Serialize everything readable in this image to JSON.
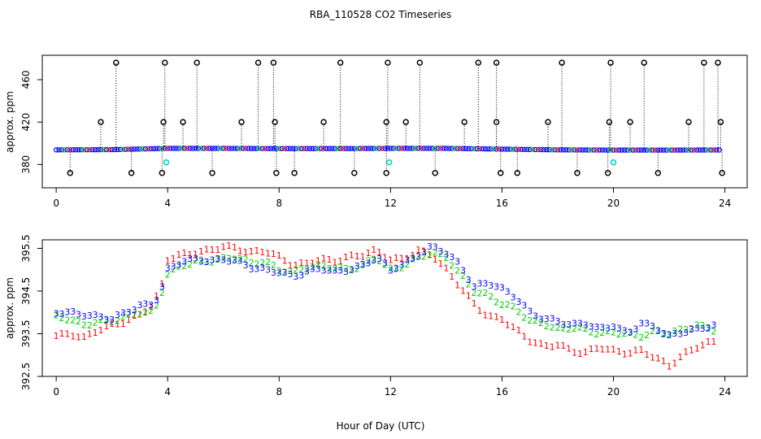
{
  "chart_data": {
    "type": "scatter",
    "title": "RBA_110528  CO2 Timeseries",
    "xlabel": "Hour of Day (UTC)",
    "colors": {
      "series1": "#ff0000",
      "series2": "#00cc00",
      "series3": "#0000ff",
      "outlier": "#000000",
      "cyan": "#00cccc"
    },
    "panels": [
      {
        "ylabel": "approx. ppm",
        "xlim": [
          -0.5,
          24.8
        ],
        "ylim": [
          358,
          483
        ],
        "xticks": [
          0,
          4,
          8,
          12,
          16,
          20,
          24
        ],
        "yticks": [
          380,
          420,
          460
        ],
        "baseline_points": [
          [
            0,
            393.8
          ],
          [
            2,
            394.0
          ],
          [
            4,
            395.2
          ],
          [
            6,
            395.2
          ],
          [
            8,
            395.0
          ],
          [
            10,
            395.0
          ],
          [
            12,
            395.2
          ],
          [
            14,
            395.2
          ],
          [
            16,
            394.5
          ],
          [
            18,
            393.8
          ],
          [
            20,
            393.6
          ],
          [
            22,
            393.6
          ],
          [
            24,
            393.7
          ]
        ],
        "high_outliers_476": [
          2.15,
          3.9,
          5.05,
          7.25,
          7.8,
          10.2,
          11.9,
          13.05,
          15.15,
          15.8,
          18.15,
          19.9,
          21.1,
          23.25,
          23.75
        ],
        "mid_outliers_420": [
          1.6,
          3.85,
          4.55,
          6.65,
          7.85,
          9.6,
          11.85,
          12.55,
          14.65,
          15.8,
          17.65,
          19.85,
          20.6,
          22.7,
          23.85
        ],
        "low_outliers_372": [
          0.5,
          2.7,
          3.8,
          5.6,
          7.9,
          8.55,
          10.7,
          11.85,
          13.6,
          15.95,
          16.55,
          18.7,
          19.8,
          21.6,
          23.9
        ],
        "cyan_points": [
          [
            3.95,
            382
          ],
          [
            11.95,
            382
          ],
          [
            20,
            382
          ]
        ]
      },
      {
        "ylabel": "approx. ppm",
        "xlim": [
          -0.5,
          24.8
        ],
        "ylim": [
          392.5,
          395.7
        ],
        "xticks": [
          0,
          4,
          8,
          12,
          16,
          20,
          24
        ],
        "yticks": [
          392.5,
          393.5,
          394.5,
          395.5
        ],
        "ytick_labels": [
          "392.5",
          "393.5",
          "394.5",
          "395.5"
        ],
        "series": [
          {
            "marker": "1",
            "values": [
              [
                0,
                393.45
              ],
              [
                0.5,
                393.5
              ],
              [
                1,
                393.4
              ],
              [
                1.5,
                393.6
              ],
              [
                2,
                393.7
              ],
              [
                2.5,
                393.8
              ],
              [
                3,
                393.95
              ],
              [
                3.5,
                394.2
              ],
              [
                3.8,
                394.65
              ],
              [
                4,
                395.25
              ],
              [
                4.5,
                395.35
              ],
              [
                5,
                395.4
              ],
              [
                5.5,
                395.45
              ],
              [
                6,
                395.55
              ],
              [
                6.5,
                395.5
              ],
              [
                7,
                395.4
              ],
              [
                7.5,
                395.45
              ],
              [
                8,
                395.3
              ],
              [
                8.5,
                395.1
              ],
              [
                9,
                395.15
              ],
              [
                9.5,
                395.25
              ],
              [
                10,
                395.2
              ],
              [
                10.5,
                395.3
              ],
              [
                11,
                395.35
              ],
              [
                11.5,
                395.45
              ],
              [
                12,
                395.25
              ],
              [
                12.5,
                395.25
              ],
              [
                13,
                395.45
              ],
              [
                13.5,
                395.35
              ],
              [
                14,
                395.0
              ],
              [
                14.5,
                394.6
              ],
              [
                15,
                394.2
              ],
              [
                15.5,
                393.9
              ],
              [
                16,
                393.85
              ],
              [
                16.5,
                393.6
              ],
              [
                17,
                393.35
              ],
              [
                17.5,
                393.2
              ],
              [
                18,
                393.25
              ],
              [
                18.5,
                393.1
              ],
              [
                19,
                393.05
              ],
              [
                19.5,
                393.2
              ],
              [
                20,
                393.1
              ],
              [
                20.5,
                393.05
              ],
              [
                21,
                393.1
              ],
              [
                21.5,
                392.95
              ],
              [
                22,
                392.75
              ],
              [
                22.5,
                393.0
              ],
              [
                23,
                393.2
              ],
              [
                23.5,
                393.3
              ]
            ]
          },
          {
            "marker": "2",
            "values": [
              [
                0,
                393.9
              ],
              [
                0.5,
                393.85
              ],
              [
                1,
                393.7
              ],
              [
                1.5,
                393.8
              ],
              [
                2,
                393.8
              ],
              [
                2.5,
                393.9
              ],
              [
                3,
                394.0
              ],
              [
                3.5,
                394.0
              ],
              [
                3.8,
                394.5
              ],
              [
                4,
                394.9
              ],
              [
                4.5,
                395.1
              ],
              [
                5,
                395.2
              ],
              [
                5.5,
                395.2
              ],
              [
                6,
                395.25
              ],
              [
                6.5,
                395.3
              ],
              [
                7,
                395.15
              ],
              [
                7.5,
                395.2
              ],
              [
                8,
                395.0
              ],
              [
                8.5,
                394.95
              ],
              [
                9,
                395.05
              ],
              [
                9.5,
                395.1
              ],
              [
                10,
                395.05
              ],
              [
                10.5,
                395.0
              ],
              [
                11,
                395.1
              ],
              [
                11.5,
                395.3
              ],
              [
                12,
                395.0
              ],
              [
                12.5,
                395.1
              ],
              [
                13,
                395.3
              ],
              [
                13.5,
                395.4
              ],
              [
                14,
                395.3
              ],
              [
                14.5,
                394.9
              ],
              [
                15,
                394.5
              ],
              [
                15.5,
                394.4
              ],
              [
                16,
                394.2
              ],
              [
                16.5,
                394.1
              ],
              [
                17,
                393.8
              ],
              [
                17.5,
                393.75
              ],
              [
                18,
                393.6
              ],
              [
                18.5,
                393.65
              ],
              [
                19,
                393.6
              ],
              [
                19.5,
                393.5
              ],
              [
                20,
                393.55
              ],
              [
                20.5,
                393.5
              ],
              [
                21,
                393.45
              ],
              [
                21.5,
                393.55
              ],
              [
                22,
                393.5
              ],
              [
                22.5,
                393.6
              ],
              [
                23,
                393.7
              ],
              [
                23.5,
                393.6
              ]
            ]
          },
          {
            "marker": "3",
            "values": [
              [
                0,
                394.0
              ],
              [
                0.5,
                394.0
              ],
              [
                1,
                393.95
              ],
              [
                1.5,
                393.9
              ],
              [
                2,
                393.85
              ],
              [
                2.5,
                394.0
              ],
              [
                3,
                394.15
              ],
              [
                3.5,
                394.2
              ],
              [
                3.8,
                394.6
              ],
              [
                4,
                395.0
              ],
              [
                4.5,
                395.2
              ],
              [
                5,
                395.25
              ],
              [
                5.5,
                395.2
              ],
              [
                6,
                395.25
              ],
              [
                6.5,
                395.2
              ],
              [
                7,
                395.05
              ],
              [
                7.5,
                395.0
              ],
              [
                8,
                394.95
              ],
              [
                8.5,
                394.85
              ],
              [
                9,
                394.95
              ],
              [
                9.5,
                395.05
              ],
              [
                10,
                394.95
              ],
              [
                10.5,
                395.0
              ],
              [
                11,
                395.1
              ],
              [
                11.5,
                395.3
              ],
              [
                12,
                395.0
              ],
              [
                12.5,
                395.15
              ],
              [
                13,
                395.35
              ],
              [
                13.5,
                395.55
              ],
              [
                14,
                395.4
              ],
              [
                14.5,
                395.1
              ],
              [
                15,
                394.6
              ],
              [
                15.5,
                394.7
              ],
              [
                16,
                394.55
              ],
              [
                16.5,
                394.35
              ],
              [
                17,
                394.0
              ],
              [
                17.5,
                393.85
              ],
              [
                18,
                393.8
              ],
              [
                18.5,
                393.7
              ],
              [
                19,
                393.75
              ],
              [
                19.5,
                393.6
              ],
              [
                20,
                393.7
              ],
              [
                20.5,
                393.5
              ],
              [
                21,
                393.75
              ],
              [
                21.5,
                393.65
              ],
              [
                22,
                393.45
              ],
              [
                22.5,
                393.55
              ],
              [
                23,
                393.6
              ],
              [
                23.5,
                393.7
              ]
            ]
          }
        ]
      }
    ]
  }
}
